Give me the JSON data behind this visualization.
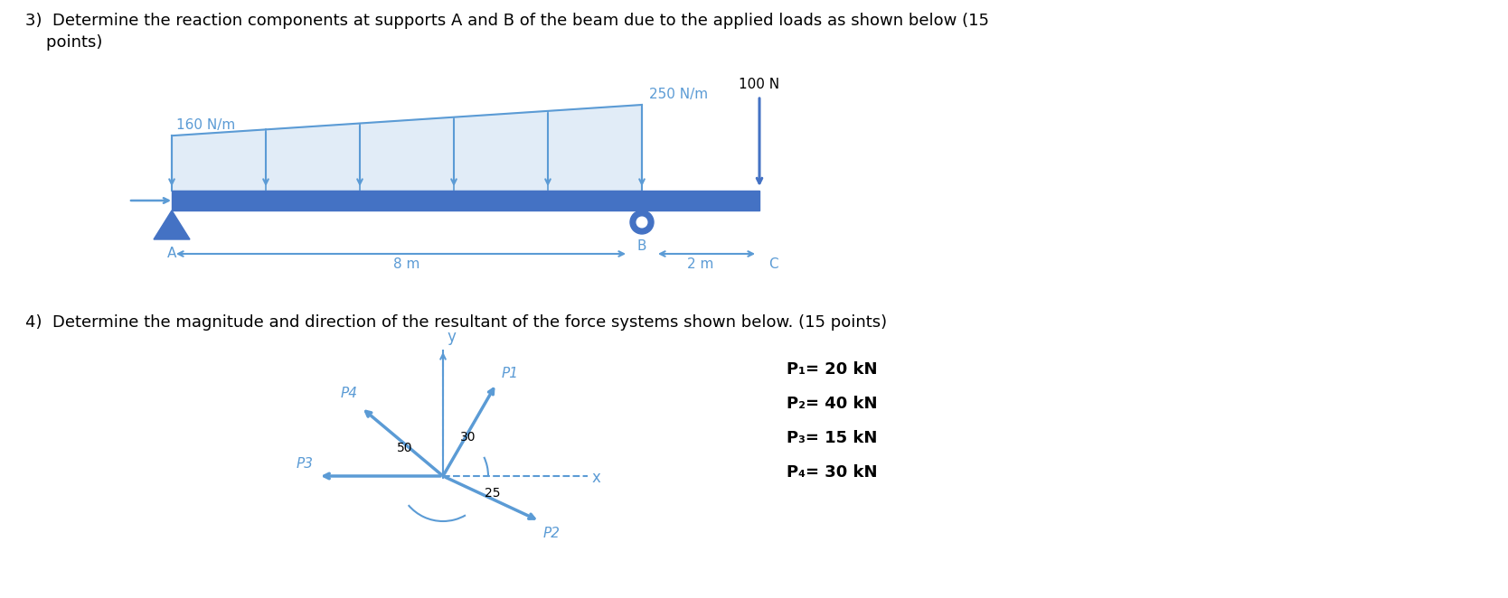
{
  "bg_color": "#ffffff",
  "text_color": "#000000",
  "blue": "#4472C4",
  "lblue": "#5B9BD5",
  "q3_line1": "3)  Determine the reaction components at supports A and B of the beam due to the applied loads as shown below (15",
  "q3_line2": "    points)",
  "q4_line": "4)  Determine the magnitude and direction of the resultant of the force systems shown below. (15 points)",
  "load_left_label": "160 N/m",
  "load_right_label": "250 N/m",
  "force_label": "100 N",
  "dim_AB": "8 m",
  "dim_BC": "2 m",
  "label_A": "A",
  "label_B": "B",
  "label_C": "C",
  "label_P1": "P1",
  "label_P2": "P2",
  "label_P3": "P3",
  "label_P4": "P4",
  "angle_P4_label": "50",
  "angle_P1_label": "30",
  "angle_P2_label": "25",
  "legend_1": "P₁= 20 kN",
  "legend_2": "P₂= 40 kN",
  "legend_3": "P₃= 15 kN",
  "legend_4": "P₄= 30 kN",
  "axis_x": "x",
  "axis_y": "y"
}
